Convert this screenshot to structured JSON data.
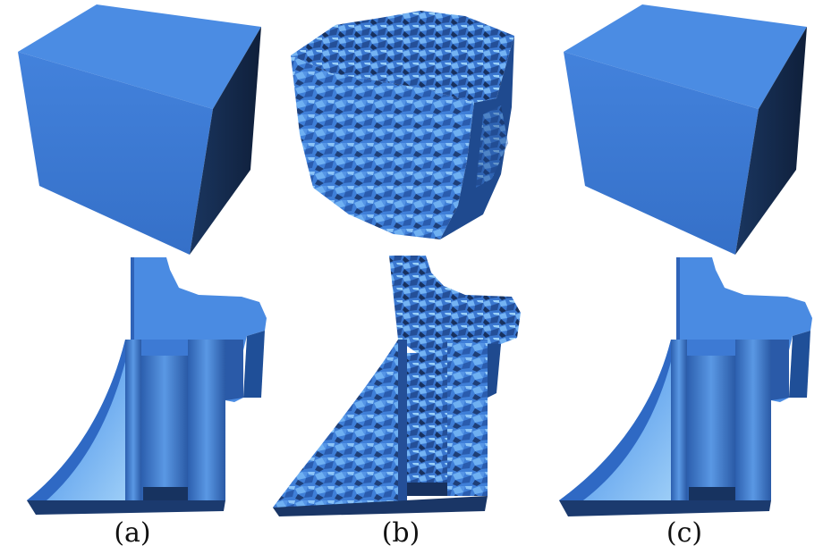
{
  "figure": {
    "captions": [
      "(a)",
      "(b)",
      "(c)"
    ],
    "colors": {
      "top": "#4a8be2",
      "front": "#3a74cd",
      "side_dark": "#16294a",
      "side_mid": "#1f4f98",
      "highlight": "#86bff5",
      "background": "#ffffff"
    }
  }
}
